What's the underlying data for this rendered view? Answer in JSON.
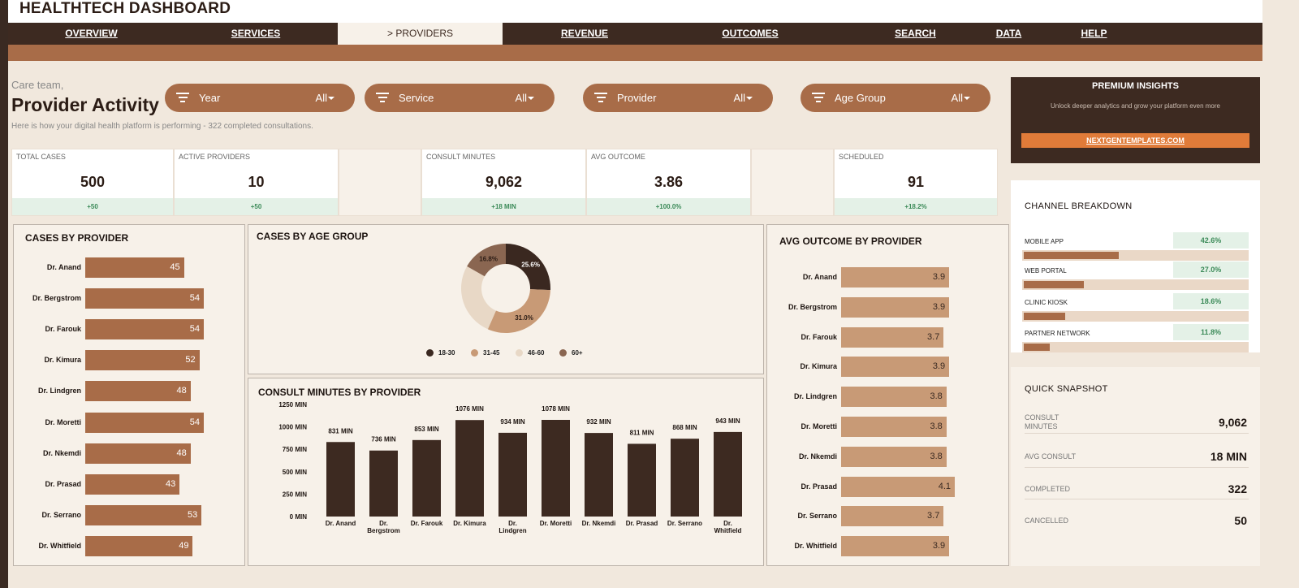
{
  "app": {
    "title": "HEALTHTECH DASHBOARD"
  },
  "nav": [
    {
      "label": "OVERVIEW"
    },
    {
      "label": "SERVICES"
    },
    {
      "label": "> PROVIDERS"
    },
    {
      "label": "REVENUE"
    },
    {
      "label": "OUTCOMES"
    },
    {
      "label": "SEARCH"
    },
    {
      "label": "DATA"
    },
    {
      "label": "HELP"
    }
  ],
  "header": {
    "greeting": "Care team,",
    "title": "Provider Activity",
    "subtitle": "Here is how your digital health platform is performing  -  322 completed consultations."
  },
  "filters": [
    {
      "label": "Year",
      "value": "All"
    },
    {
      "label": "Service",
      "value": "All"
    },
    {
      "label": "Provider",
      "value": "All"
    },
    {
      "label": "Age Group",
      "value": "All"
    }
  ],
  "premium": {
    "title": "PREMIUM INSIGHTS",
    "subtitle": "Unlock deeper analytics and grow your platform even more",
    "button": "NEXTGENTEMPLATES.COM"
  },
  "kpis": [
    {
      "label": "TOTAL CASES",
      "value": "500",
      "delta": "+50"
    },
    {
      "label": "ACTIVE PROVIDERS",
      "value": "10",
      "delta": "+50"
    },
    {
      "label": "CONSULT MINUTES",
      "value": "9,062",
      "delta": "+18 MIN"
    },
    {
      "label": "AVG OUTCOME",
      "value": "3.86",
      "delta": "+100.0%"
    },
    {
      "label": "SCHEDULED",
      "value": "91",
      "delta": "+18.2%"
    }
  ],
  "colors": {
    "dark": "#3d2a21",
    "accent": "#a86c48",
    "light_accent": "#c89a76",
    "cream": "#f7f1e9",
    "positive": "#3b8a58"
  },
  "chart_data": [
    {
      "type": "bar",
      "orientation": "horizontal",
      "title": "CASES BY PROVIDER",
      "categories": [
        "Dr. Anand",
        "Dr. Bergstrom",
        "Dr. Farouk",
        "Dr. Kimura",
        "Dr. Lindgren",
        "Dr. Moretti",
        "Dr. Nkemdi",
        "Dr. Prasad",
        "Dr. Serrano",
        "Dr. Whitfield"
      ],
      "values": [
        45,
        54,
        54,
        52,
        48,
        54,
        48,
        43,
        53,
        49
      ]
    },
    {
      "type": "pie",
      "donut": true,
      "title": "CASES BY AGE GROUP",
      "categories": [
        "18-30",
        "31-45",
        "46-60",
        "60+"
      ],
      "values": [
        25.6,
        31.0,
        26.6,
        16.8
      ],
      "labels": [
        "25.6%",
        "31.0%",
        "",
        "16.8%"
      ],
      "colors": [
        "#3a2820",
        "#c89a76",
        "#e8d8c6",
        "#8a6651"
      ],
      "legend": "bottom"
    },
    {
      "type": "bar",
      "title": "CONSULT MINUTES BY PROVIDER",
      "categories": [
        "Dr. Anand",
        "Dr. Bergstrom",
        "Dr. Farouk",
        "Dr. Kimura",
        "Dr. Lindgren",
        "Dr. Moretti",
        "Dr. Nkemdi",
        "Dr. Prasad",
        "Dr. Serrano",
        "Dr. Whitfield"
      ],
      "values": [
        831,
        736,
        853,
        1076,
        934,
        1078,
        932,
        811,
        868,
        943
      ],
      "value_labels": [
        "831 MIN",
        "736 MIN",
        "853 MIN",
        "1076 MIN",
        "934 MIN",
        "1078 MIN",
        "932 MIN",
        "811 MIN",
        "868 MIN",
        "943 MIN"
      ],
      "ylim": [
        0,
        1250
      ],
      "yticks": [
        0,
        250,
        500,
        750,
        1000,
        1250
      ],
      "ytick_labels": [
        "0 MIN",
        "250 MIN",
        "500 MIN",
        "750 MIN",
        "1000 MIN",
        "1250 MIN"
      ],
      "bar_color": "#3d2a21"
    },
    {
      "type": "bar",
      "orientation": "horizontal",
      "title": "AVG OUTCOME BY PROVIDER",
      "categories": [
        "Dr. Anand",
        "Dr. Bergstrom",
        "Dr. Farouk",
        "Dr. Kimura",
        "Dr. Lindgren",
        "Dr. Moretti",
        "Dr. Nkemdi",
        "Dr. Prasad",
        "Dr. Serrano",
        "Dr. Whitfield"
      ],
      "values": [
        3.9,
        3.9,
        3.7,
        3.9,
        3.8,
        3.8,
        3.8,
        4.1,
        3.7,
        3.9
      ]
    },
    {
      "type": "bar",
      "orientation": "horizontal",
      "title": "CHANNEL BREAKDOWN",
      "categories": [
        "MOBILE APP",
        "WEB PORTAL",
        "CLINIC KIOSK",
        "PARTNER NETWORK"
      ],
      "values": [
        42.6,
        27.0,
        18.6,
        11.8
      ],
      "value_labels": [
        "42.6%",
        "27.0%",
        "18.6%",
        "11.8%"
      ]
    }
  ],
  "snapshot": {
    "title": "QUICK SNAPSHOT",
    "rows": [
      {
        "label": "CONSULT MINUTES",
        "value": "9,062"
      },
      {
        "label": "AVG CONSULT",
        "value": "18 MIN"
      },
      {
        "label": "COMPLETED",
        "value": "322"
      },
      {
        "label": "CANCELLED",
        "value": "50"
      }
    ]
  }
}
